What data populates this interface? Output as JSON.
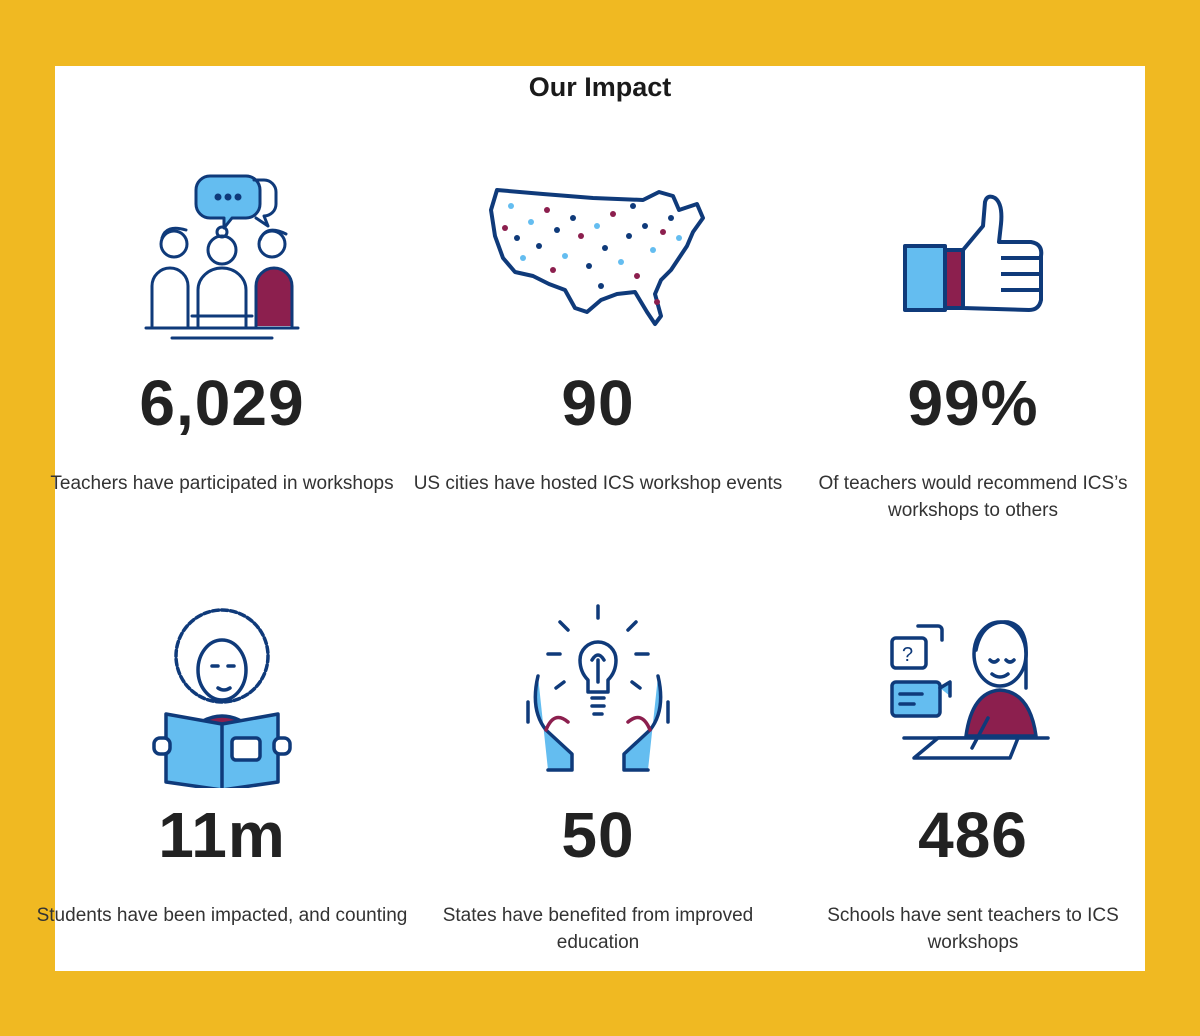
{
  "title": "Our Impact",
  "colors": {
    "background": "#F0B922",
    "navy": "#0F3A7A",
    "light_blue": "#64BDF0",
    "maroon": "#8C1F4E"
  },
  "stats": [
    {
      "icon": "teachers-meeting-icon",
      "value": "6,029",
      "description": "Teachers have participated in workshops"
    },
    {
      "icon": "us-map-icon",
      "value": "90",
      "description": "US cities have hosted ICS workshop events"
    },
    {
      "icon": "thumbs-up-icon",
      "value": "99%",
      "description": "Of teachers would recommend ICS’s workshops to others"
    },
    {
      "icon": "student-reading-icon",
      "value": "11m",
      "description": "Students have been impacted, and counting"
    },
    {
      "icon": "lightbulb-hands-icon",
      "value": "50",
      "description": "States have benefited from improved education"
    },
    {
      "icon": "teacher-writing-icon",
      "value": "486",
      "description": "Schools have sent teachers to ICS workshops"
    }
  ]
}
